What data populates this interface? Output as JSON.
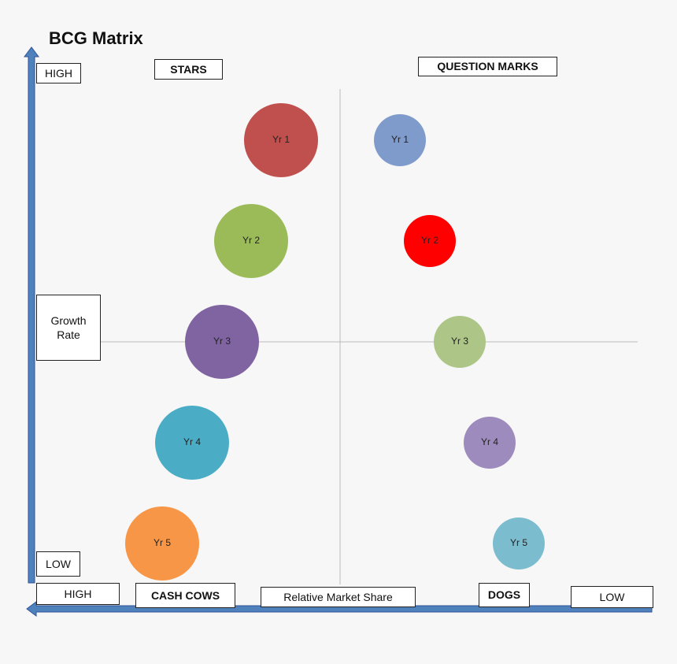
{
  "title": "BCG Matrix",
  "y_axis": {
    "high": "HIGH",
    "low": "LOW",
    "label": "Growth Rate"
  },
  "x_axis": {
    "high": "HIGH",
    "low": "LOW",
    "label": "Relative Market Share"
  },
  "quadrants": {
    "stars": "STARS",
    "question_marks": "QUESTION MARKS",
    "cash_cows": "CASH COWS",
    "dogs": "DOGS"
  },
  "bubbles": [
    {
      "label": "Yr 1",
      "color": "#c0504d"
    },
    {
      "label": "Yr 2",
      "color": "#9bbb59"
    },
    {
      "label": "Yr 3",
      "color": "#8064a2"
    },
    {
      "label": "Yr 4",
      "color": "#4bacc6"
    },
    {
      "label": "Yr 5",
      "color": "#f79646"
    },
    {
      "label": "Yr 1",
      "color": "#7f9bcb"
    },
    {
      "label": "Yr 2",
      "color": "#ff0000"
    },
    {
      "label": "Yr 3",
      "color": "#adc687"
    },
    {
      "label": "Yr 4",
      "color": "#9e8bbd"
    },
    {
      "label": "Yr 5",
      "color": "#7bbccf"
    }
  ]
}
